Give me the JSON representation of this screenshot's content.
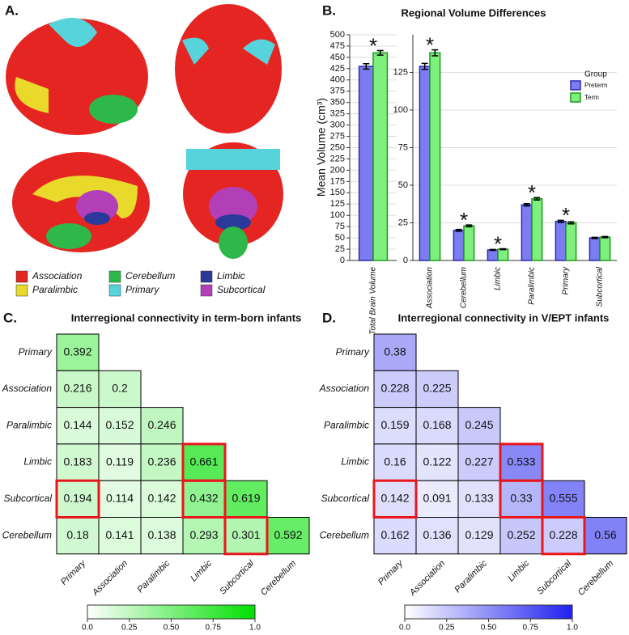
{
  "panels": [
    "A.",
    "B.",
    "C.",
    "D."
  ],
  "brain_legend": [
    {
      "label": "Association",
      "color": "#e52521"
    },
    {
      "label": "Paralimbic",
      "color": "#e8d92b"
    },
    {
      "label": "Cerebellum",
      "color": "#2eb84a"
    },
    {
      "label": "Primary",
      "color": "#57d3db"
    },
    {
      "label": "Limbic",
      "color": "#2b3a9a"
    },
    {
      "label": "Subcortical",
      "color": "#b23fb8"
    }
  ],
  "chart_data": [
    {
      "type": "bar",
      "title": "Regional Volume Differences",
      "ylabel": "Mean Volume (cm³)",
      "categories": [
        "Total Brain Volume"
      ],
      "series": [
        {
          "name": "Preterm",
          "color": "#7b7bf2",
          "edge": "#2b2bb0",
          "values": [
            430
          ],
          "errors": [
            6
          ]
        },
        {
          "name": "Term",
          "color": "#7ff07f",
          "edge": "#1a9a1a",
          "values": [
            460
          ],
          "errors": [
            5
          ]
        }
      ],
      "marker": "*",
      "significant": [
        true
      ],
      "ylim": [
        0,
        500
      ],
      "yticks": [
        0,
        25,
        50,
        75,
        100,
        125,
        150,
        175,
        200,
        225,
        250,
        275,
        300,
        325,
        350,
        375,
        400,
        425,
        450,
        475,
        500
      ],
      "grid": true
    },
    {
      "type": "bar",
      "categories": [
        "Association",
        "Cerebellum",
        "Limbic",
        "Paralimbic",
        "Primary",
        "Subcortical"
      ],
      "series": [
        {
          "name": "Preterm",
          "color": "#7b7bf2",
          "edge": "#2b2bb0",
          "values": [
            129,
            20,
            7,
            37,
            26,
            15
          ],
          "errors": [
            2,
            0.6,
            0.3,
            0.8,
            0.7,
            0.4
          ]
        },
        {
          "name": "Term",
          "color": "#7ff07f",
          "edge": "#1a9a1a",
          "values": [
            138,
            23,
            7.5,
            41,
            25,
            15.5
          ],
          "errors": [
            2,
            0.6,
            0.3,
            0.8,
            0.7,
            0.4
          ]
        }
      ],
      "marker": "*",
      "significant": [
        true,
        true,
        true,
        true,
        true,
        false
      ],
      "legend_title": "Group",
      "legend": "upper right",
      "ylim": [
        0,
        150
      ],
      "yticks": [
        0,
        25,
        50,
        75,
        100,
        125
      ],
      "grid": true
    },
    {
      "type": "heatmap",
      "title": "Interregional connectivity in term-born infants",
      "labels": [
        "Primary",
        "Association",
        "Paralimbic",
        "Limbic",
        "Subcortical",
        "Cerebellum"
      ],
      "values": [
        [
          0.392
        ],
        [
          0.216,
          0.2
        ],
        [
          0.144,
          0.152,
          0.246
        ],
        [
          0.183,
          0.119,
          0.236,
          0.661
        ],
        [
          0.194,
          0.114,
          0.142,
          0.432,
          0.619
        ],
        [
          0.18,
          0.141,
          0.138,
          0.293,
          0.301,
          0.592
        ]
      ],
      "highlight_cells": [
        [
          4,
          0
        ],
        [
          3,
          3
        ],
        [
          4,
          3
        ],
        [
          5,
          4
        ]
      ],
      "highlight_color": "#e8171c",
      "colormap": [
        "#ffffff",
        "#00e000"
      ],
      "zlim": [
        0,
        1
      ],
      "zticks": [
        {
          "value": 0,
          "label": "0.0"
        },
        0.25,
        {
          "value": 0.5,
          "label": "0.50"
        },
        0.75,
        {
          "value": 1,
          "label": "1.0"
        }
      ]
    },
    {
      "type": "heatmap",
      "title": "Interregional connectivity in V/EPT infants",
      "labels": [
        "Primary",
        "Association",
        "Paralimbic",
        "Limbic",
        "Subcortical",
        "Cerebellum"
      ],
      "values": [
        [
          0.38
        ],
        [
          0.228,
          0.225
        ],
        [
          0.159,
          0.168,
          0.245
        ],
        [
          0.16,
          0.122,
          0.227,
          0.533
        ],
        [
          0.142,
          0.091,
          0.133,
          0.33,
          0.555
        ],
        [
          0.162,
          0.136,
          0.129,
          0.252,
          0.228,
          0.56
        ]
      ],
      "highlight_cells": [
        [
          4,
          0
        ],
        [
          3,
          3
        ],
        [
          4,
          3
        ],
        [
          5,
          4
        ]
      ],
      "highlight_color": "#e8171c",
      "colormap": [
        "#ffffff",
        "#2020f0"
      ],
      "zlim": [
        0,
        1
      ],
      "zticks": [
        {
          "value": 0,
          "label": "0.0"
        },
        0.25,
        {
          "value": 0.5,
          "label": "0.50"
        },
        0.75,
        {
          "value": 1,
          "label": "1.0"
        }
      ]
    }
  ]
}
